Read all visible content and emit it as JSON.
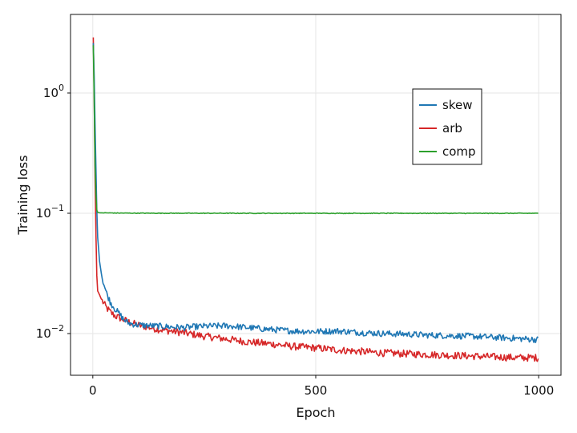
{
  "chart_data": {
    "type": "line",
    "title": "",
    "xlabel": "Epoch",
    "ylabel": "Training loss",
    "xlim": [
      -50,
      1050
    ],
    "ylim": [
      0.0045,
      4.5
    ],
    "yscale": "log",
    "grid": true,
    "legend_position": "top-right",
    "x_ticks": [
      {
        "value": 0,
        "label": "0"
      },
      {
        "value": 500,
        "label": "500"
      },
      {
        "value": 1000,
        "label": "1000"
      }
    ],
    "y_ticks": [
      {
        "value": 1,
        "base": "10",
        "exp": "0"
      },
      {
        "value": 0.1,
        "base": "10",
        "exp": "−1"
      },
      {
        "value": 0.01,
        "base": "10",
        "exp": "−2"
      }
    ],
    "series": [
      {
        "name": "skew",
        "color": "#1f77b4",
        "x": [
          1,
          3,
          5,
          8,
          10,
          15,
          20,
          30,
          40,
          50,
          60,
          70,
          80,
          100,
          150,
          200,
          250,
          300,
          350,
          400,
          450,
          500,
          550,
          600,
          650,
          700,
          750,
          800,
          850,
          900,
          950,
          1000
        ],
        "y": [
          2.6,
          1.4,
          0.55,
          0.16,
          0.07,
          0.04,
          0.03,
          0.022,
          0.018,
          0.016,
          0.0145,
          0.013,
          0.0122,
          0.0118,
          0.0115,
          0.0112,
          0.0115,
          0.0116,
          0.0112,
          0.0108,
          0.0105,
          0.0104,
          0.0105,
          0.0102,
          0.01,
          0.0099,
          0.0097,
          0.0096,
          0.0095,
          0.0093,
          0.0091,
          0.0089
        ],
        "noise": 0.06
      },
      {
        "name": "arb",
        "color": "#d62728",
        "x": [
          1,
          3,
          5,
          8,
          10,
          15,
          20,
          30,
          40,
          50,
          60,
          80,
          100,
          150,
          200,
          250,
          300,
          350,
          400,
          450,
          500,
          550,
          600,
          650,
          700,
          750,
          800,
          850,
          900,
          950,
          1000
        ],
        "y": [
          2.9,
          1.0,
          0.2,
          0.04,
          0.023,
          0.021,
          0.019,
          0.0165,
          0.015,
          0.014,
          0.0135,
          0.0125,
          0.0118,
          0.0108,
          0.0102,
          0.0095,
          0.009,
          0.0085,
          0.0082,
          0.0078,
          0.0076,
          0.0073,
          0.0071,
          0.0069,
          0.0068,
          0.0067,
          0.0066,
          0.0065,
          0.0064,
          0.0063,
          0.0063
        ],
        "noise": 0.07
      },
      {
        "name": "comp",
        "color": "#2ca02c",
        "x": [
          1,
          3,
          5,
          8,
          10,
          15,
          50,
          100,
          200,
          400,
          600,
          800,
          1000
        ],
        "y": [
          2.5,
          0.9,
          0.25,
          0.11,
          0.102,
          0.101,
          0.1005,
          0.1002,
          0.1001,
          0.1,
          0.1,
          0.1,
          0.1
        ],
        "noise": 0.006
      }
    ]
  }
}
